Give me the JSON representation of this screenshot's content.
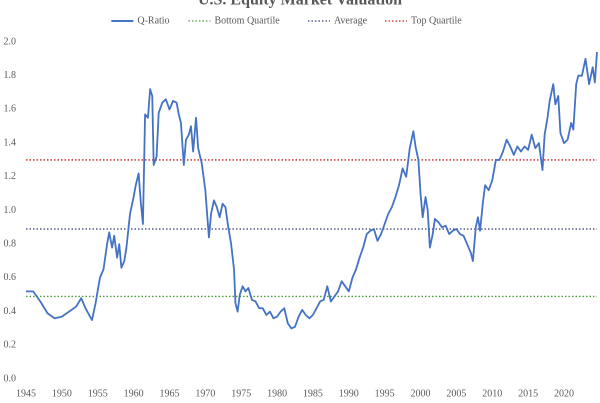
{
  "chart_data": {
    "type": "line",
    "title": "U.S. Equity Market Valuation",
    "x": [
      1945,
      1946,
      1947,
      1948,
      1949,
      1950,
      1951,
      1952,
      1952.7,
      1953.3,
      1953.8,
      1954.2,
      1954.7,
      1955.3,
      1955.8,
      1956.3,
      1956.6,
      1957,
      1957.3,
      1957.7,
      1958,
      1958.3,
      1958.7,
      1959,
      1959.5,
      1960,
      1960.3,
      1960.7,
      1961,
      1961.3,
      1961.6,
      1962,
      1962.3,
      1962.6,
      1962.8,
      1963.2,
      1963.5,
      1964,
      1964.5,
      1965,
      1965.5,
      1966,
      1966.3,
      1966.6,
      1967,
      1967.3,
      1967.7,
      1968,
      1968.3,
      1968.7,
      1969,
      1969.5,
      1970,
      1970.5,
      1970.8,
      1971.2,
      1971.6,
      1972,
      1972.4,
      1972.8,
      1973.2,
      1973.6,
      1974,
      1974.2,
      1974.5,
      1974.8,
      1975.2,
      1975.6,
      1976,
      1976.5,
      1977,
      1977.5,
      1978,
      1978.5,
      1979,
      1979.5,
      1980,
      1980.5,
      1981,
      1981.5,
      1982,
      1982.5,
      1983,
      1983.5,
      1984,
      1984.5,
      1985,
      1985.5,
      1986,
      1986.5,
      1987,
      1987.5,
      1988,
      1988.5,
      1989,
      1989.5,
      1990,
      1990.5,
      1991,
      1991.5,
      1992,
      1992.5,
      1993,
      1993.5,
      1994,
      1994.5,
      1995,
      1995.5,
      1996,
      1996.5,
      1997,
      1997.5,
      1998,
      1998.5,
      1999,
      1999.3,
      1999.7,
      2000,
      2000.3,
      2000.7,
      2001,
      2001.3,
      2001.7,
      2002,
      2002.5,
      2003,
      2003.5,
      2004,
      2004.5,
      2005,
      2005.5,
      2006,
      2006.5,
      2007,
      2007.3,
      2007.7,
      2008,
      2008.3,
      2008.7,
      2009,
      2009.5,
      2010,
      2010.5,
      2011,
      2011.5,
      2012,
      2012.5,
      2013,
      2013.5,
      2014,
      2014.5,
      2015,
      2015.5,
      2016,
      2016.5,
      2017,
      2017.3,
      2017.7,
      2018,
      2018.5,
      2018.8,
      2019.2,
      2019.5,
      2020,
      2020.5,
      2021,
      2021.3,
      2021.7,
      2022,
      2022.5,
      2023,
      2023.5,
      2024,
      2024.3,
      2024.6
    ],
    "series": [
      {
        "name": "Q-Ratio",
        "color": "#4472c4",
        "values": [
          0.52,
          0.52,
          0.46,
          0.39,
          0.36,
          0.37,
          0.4,
          0.43,
          0.48,
          0.42,
          0.38,
          0.35,
          0.45,
          0.6,
          0.65,
          0.8,
          0.87,
          0.78,
          0.85,
          0.72,
          0.8,
          0.66,
          0.7,
          0.78,
          0.98,
          1.08,
          1.15,
          1.22,
          1.05,
          0.92,
          1.57,
          1.55,
          1.72,
          1.68,
          1.27,
          1.32,
          1.58,
          1.64,
          1.66,
          1.6,
          1.65,
          1.64,
          1.57,
          1.52,
          1.27,
          1.42,
          1.45,
          1.5,
          1.35,
          1.55,
          1.37,
          1.28,
          1.12,
          0.84,
          0.98,
          1.06,
          1.02,
          0.96,
          1.04,
          1.02,
          0.9,
          0.8,
          0.65,
          0.45,
          0.4,
          0.5,
          0.55,
          0.52,
          0.54,
          0.47,
          0.46,
          0.42,
          0.42,
          0.38,
          0.4,
          0.36,
          0.37,
          0.4,
          0.42,
          0.33,
          0.3,
          0.31,
          0.37,
          0.41,
          0.38,
          0.36,
          0.38,
          0.42,
          0.46,
          0.47,
          0.55,
          0.46,
          0.49,
          0.52,
          0.58,
          0.55,
          0.52,
          0.6,
          0.65,
          0.72,
          0.78,
          0.86,
          0.88,
          0.89,
          0.82,
          0.86,
          0.92,
          0.98,
          1.02,
          1.08,
          1.15,
          1.25,
          1.2,
          1.37,
          1.47,
          1.38,
          1.3,
          1.1,
          0.96,
          1.08,
          1.0,
          0.78,
          0.86,
          0.95,
          0.93,
          0.9,
          0.91,
          0.86,
          0.88,
          0.89,
          0.86,
          0.85,
          0.8,
          0.75,
          0.7,
          0.9,
          0.96,
          0.88,
          1.05,
          1.15,
          1.12,
          1.18,
          1.3,
          1.3,
          1.35,
          1.42,
          1.38,
          1.33,
          1.38,
          1.35,
          1.38,
          1.36,
          1.45,
          1.37,
          1.4,
          1.24,
          1.45,
          1.55,
          1.65,
          1.75,
          1.63,
          1.68,
          1.46,
          1.4,
          1.42,
          1.52,
          1.48,
          1.75,
          1.8,
          1.8,
          1.9,
          1.75,
          1.85,
          1.76,
          1.94
        ]
      }
    ],
    "reference_lines": [
      {
        "name": "Bottom Quartile",
        "value": 0.49,
        "color": "#4a9e3a",
        "style": "dotted"
      },
      {
        "name": "Average",
        "value": 0.89,
        "color": "#2f3d6e",
        "style": "dotted"
      },
      {
        "name": "Top Quartile",
        "value": 1.3,
        "color": "#cc1f1f",
        "style": "dotted"
      }
    ],
    "xlim": [
      1945,
      2024.6
    ],
    "xticks": [
      1945,
      1950,
      1955,
      1960,
      1965,
      1970,
      1975,
      1980,
      1985,
      1990,
      1995,
      2000,
      2005,
      2010,
      2015,
      2020
    ],
    "ylim": [
      0,
      2
    ],
    "yticks": [
      {
        "value": 0,
        "label": "0.0"
      },
      0.2,
      0.4,
      0.6,
      0.8,
      {
        "value": 1,
        "label": "1.0"
      },
      1.2,
      1.4,
      1.6,
      1.8,
      {
        "value": 2,
        "label": "2.0"
      }
    ],
    "grid": false,
    "legend": "top"
  }
}
